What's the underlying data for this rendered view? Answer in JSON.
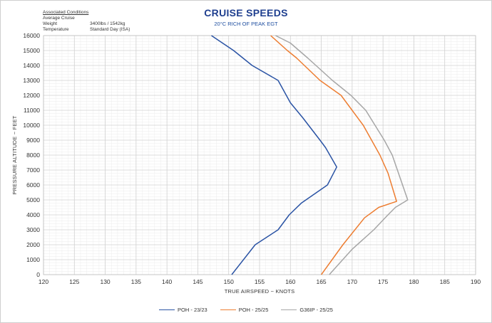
{
  "conditions": {
    "heading": "Associated Conditions",
    "rows": [
      {
        "label": "Average Cruise Weight",
        "value": "3400lbs / 1542kg"
      },
      {
        "label": "Temperature",
        "value": "Standard Day (ISA)"
      }
    ]
  },
  "chart_data": {
    "type": "line",
    "title": "CRUISE SPEEDS",
    "subtitle": "20°C RICH OF PEAK EGT",
    "xlabel": "TRUE AIRSPEED ~ KNOTS",
    "ylabel": "PRESSURE ALTITUDE ~ FEET",
    "xlim": [
      120,
      190
    ],
    "ylim": [
      0,
      16000
    ],
    "xticks": [
      120,
      125,
      130,
      135,
      140,
      145,
      150,
      155,
      160,
      165,
      170,
      175,
      180,
      185,
      190
    ],
    "yticks": [
      0,
      1000,
      2000,
      3000,
      4000,
      5000,
      6000,
      7000,
      8000,
      9000,
      10000,
      11000,
      12000,
      13000,
      14000,
      15000,
      16000
    ],
    "grid": true,
    "legend_position": "bottom",
    "series": [
      {
        "name": "POH - 23/23",
        "color": "#2a53a4",
        "points": [
          [
            150.5,
            0
          ],
          [
            154.3,
            2000
          ],
          [
            158,
            3000
          ],
          [
            159.8,
            4000
          ],
          [
            161.8,
            4800
          ],
          [
            166,
            6000
          ],
          [
            167.5,
            7200
          ],
          [
            165.7,
            8500
          ],
          [
            164.8,
            9000
          ],
          [
            162,
            10500
          ],
          [
            160,
            11500
          ],
          [
            158,
            13000
          ],
          [
            153.8,
            14000
          ],
          [
            150.8,
            15000
          ],
          [
            147.2,
            16000
          ]
        ]
      },
      {
        "name": "POH - 25/25",
        "color": "#ed7d31",
        "points": [
          [
            165,
            0
          ],
          [
            168.5,
            2000
          ],
          [
            172,
            3800
          ],
          [
            174.3,
            4500
          ],
          [
            177.2,
            4900
          ],
          [
            175.8,
            6800
          ],
          [
            174.5,
            8000
          ],
          [
            171.8,
            10000
          ],
          [
            168.2,
            12000
          ],
          [
            164.8,
            13000
          ],
          [
            161,
            14500
          ],
          [
            159.5,
            15000
          ],
          [
            156.8,
            16000
          ]
        ]
      },
      {
        "name": "G36IP - 25/25",
        "color": "#a6a6a6",
        "points": [
          [
            166.3,
            0
          ],
          [
            170,
            1700
          ],
          [
            173.5,
            3000
          ],
          [
            175.8,
            4000
          ],
          [
            177,
            4500
          ],
          [
            179,
            5000
          ],
          [
            176.5,
            8000
          ],
          [
            175.2,
            9000
          ],
          [
            172.2,
            11000
          ],
          [
            169.8,
            12000
          ],
          [
            166.8,
            13000
          ],
          [
            162.8,
            14500
          ],
          [
            160,
            15500
          ],
          [
            157.6,
            16000
          ]
        ]
      }
    ]
  }
}
